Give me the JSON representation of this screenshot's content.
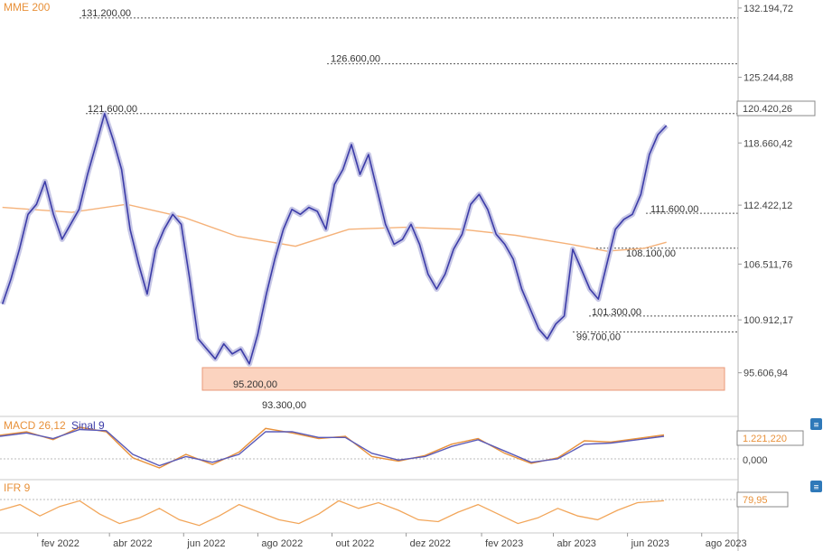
{
  "legend": {
    "mme": "MME 200",
    "macd": "MACD 26,12",
    "sinal": "Sinal 9",
    "ifr": "IFR 9"
  },
  "panel_buttons": [
    "≡",
    "≡"
  ],
  "price_levels": [
    {
      "label": "131.200,00",
      "value": 131200
    },
    {
      "label": "126.600,00",
      "value": 126600
    },
    {
      "label": "121.600,00",
      "value": 121600
    },
    {
      "label": "111.600,00",
      "value": 111600
    },
    {
      "label": "108.100,00",
      "value": 108100
    },
    {
      "label": "101.300,00",
      "value": 101300
    },
    {
      "label": "99.700,00",
      "value": 99700
    },
    {
      "label": "95.200,00",
      "value": 95200
    },
    {
      "label": "93.300,00",
      "value": 93300
    }
  ],
  "value_boxes": {
    "price_current": "120.420,26",
    "macd_current": "1.221,220",
    "ifr_current": "79,95"
  },
  "colors": {
    "price": "#3c3ca8",
    "price_shadow": "#c7c7e6",
    "mme": "#f5b27a",
    "macd": "#e8913a",
    "signal": "#5a5ab8",
    "ifr": "#f2a65a",
    "support_zone": "#fbd3bf",
    "support_zone_border": "#e99a78",
    "button": "#2f79b9"
  },
  "chart_data": {
    "type": "line",
    "price": {
      "y_tick_labels": [
        "132.194,72",
        "125.244,88",
        "118.660,42",
        "112.422,12",
        "106.511,76",
        "100.912,17",
        "95.606,94"
      ],
      "y_tick_values": [
        132194.72,
        125244.88,
        118660.42,
        112422.12,
        106511.76,
        100912.17,
        95606.94
      ],
      "ylim": [
        91500,
        133000
      ],
      "support_zone": [
        93300,
        95200
      ],
      "series": [
        {
          "name": "",
          "x": [
            "2022-01-03",
            "2022-01-10",
            "2022-01-17",
            "2022-01-24",
            "2022-01-31",
            "2022-02-07",
            "2022-02-14",
            "2022-02-21",
            "2022-03-07",
            "2022-03-14",
            "2022-03-21",
            "2022-03-28",
            "2022-04-04",
            "2022-04-11",
            "2022-04-18",
            "2022-04-25",
            "2022-05-02",
            "2022-05-09",
            "2022-05-16",
            "2022-05-23",
            "2022-05-30",
            "2022-06-06",
            "2022-06-13",
            "2022-06-20",
            "2022-06-27",
            "2022-07-04",
            "2022-07-11",
            "2022-07-18",
            "2022-07-25",
            "2022-08-01",
            "2022-08-08",
            "2022-08-15",
            "2022-08-22",
            "2022-08-29",
            "2022-09-05",
            "2022-09-12",
            "2022-09-19",
            "2022-09-26",
            "2022-10-03",
            "2022-10-10",
            "2022-10-17",
            "2022-10-24",
            "2022-10-31",
            "2022-11-07",
            "2022-11-14",
            "2022-11-21",
            "2022-11-28",
            "2022-12-05",
            "2022-12-12",
            "2022-12-19",
            "2022-12-26",
            "2023-01-02",
            "2023-01-09",
            "2023-01-16",
            "2023-01-23",
            "2023-01-30",
            "2023-02-06",
            "2023-02-13",
            "2023-02-20",
            "2023-02-27",
            "2023-03-06",
            "2023-03-13",
            "2023-03-20",
            "2023-03-27",
            "2023-04-03",
            "2023-04-10",
            "2023-04-17",
            "2023-04-24",
            "2023-05-01",
            "2023-05-08",
            "2023-05-15",
            "2023-05-22",
            "2023-05-29",
            "2023-06-05",
            "2023-06-12",
            "2023-06-19",
            "2023-06-26",
            "2023-07-03"
          ],
          "values": [
            102500,
            105000,
            108000,
            111500,
            112500,
            114800,
            111500,
            109000,
            112000,
            115500,
            118500,
            121600,
            119000,
            116000,
            110000,
            106500,
            103500,
            108000,
            110000,
            111500,
            110500,
            105000,
            99000,
            98000,
            97000,
            98500,
            97500,
            98000,
            96500,
            99500,
            103500,
            107000,
            110000,
            112000,
            111500,
            112200,
            111800,
            110000,
            114500,
            116000,
            118500,
            115500,
            117500,
            114000,
            110500,
            108500,
            109000,
            110500,
            108500,
            105500,
            104000,
            105500,
            108000,
            109500,
            112500,
            113500,
            112000,
            109500,
            108500,
            107000,
            104000,
            102000,
            100000,
            99000,
            100500,
            101300,
            108000,
            106000,
            104000,
            103000,
            106500,
            110000,
            111000,
            111500,
            113500,
            117500,
            119500,
            120400
          ]
        },
        {
          "name": "",
          "x": [
            "2022-01-03",
            "2022-03-01",
            "2022-04-15",
            "2022-06-01",
            "2022-07-15",
            "2022-09-01",
            "2022-10-15",
            "2022-12-01",
            "2023-01-15",
            "2023-03-01",
            "2023-04-15",
            "2023-05-15",
            "2023-06-15",
            "2023-07-03"
          ],
          "values": [
            112200,
            111700,
            112500,
            111200,
            109300,
            108300,
            110000,
            110200,
            110000,
            109400,
            108500,
            107800,
            108100,
            108700
          ]
        }
      ]
    },
    "macd": {
      "tick_labels": [
        "1.221,220",
        "0,000"
      ],
      "tick_values": [
        1221.22,
        0
      ],
      "ylim": [
        -2500,
        2700
      ],
      "series": [
        {
          "name": "MACD 26,12",
          "x": [
            0,
            4,
            8,
            12,
            16,
            20,
            24,
            28,
            32,
            36,
            40,
            44,
            48,
            52,
            56,
            60,
            64,
            68,
            72,
            76,
            80,
            84,
            88,
            92,
            96,
            100
          ],
          "values": [
            1200,
            1500,
            800,
            1900,
            1500,
            -800,
            -1700,
            -500,
            -1400,
            -300,
            1800,
            1400,
            900,
            1100,
            -700,
            -1100,
            -600,
            400,
            900,
            -400,
            -1300,
            -800,
            700,
            600,
            900,
            1221
          ]
        },
        {
          "name": "Sinal 9",
          "x": [
            0,
            4,
            8,
            12,
            16,
            20,
            24,
            28,
            32,
            36,
            40,
            44,
            48,
            52,
            56,
            60,
            64,
            68,
            72,
            76,
            80,
            84,
            88,
            92,
            96,
            100
          ],
          "values": [
            1100,
            1400,
            900,
            1700,
            1600,
            -500,
            -1500,
            -700,
            -1200,
            -500,
            1500,
            1500,
            1000,
            1000,
            -400,
            -1000,
            -700,
            200,
            800,
            -200,
            -1200,
            -900,
            400,
            500,
            800,
            1100
          ]
        }
      ]
    },
    "ifr": {
      "tick_labels": [
        "79,95"
      ],
      "tick_values": [
        79.95
      ],
      "ylim": [
        0,
        100
      ],
      "series": [
        {
          "name": "IFR 9",
          "x": [
            0,
            3,
            6,
            9,
            12,
            15,
            18,
            21,
            24,
            27,
            30,
            33,
            36,
            39,
            42,
            45,
            48,
            51,
            54,
            57,
            60,
            63,
            66,
            69,
            72,
            75,
            78,
            81,
            84,
            87,
            90,
            93,
            96,
            100
          ],
          "values": [
            55,
            70,
            40,
            65,
            80,
            45,
            20,
            35,
            60,
            30,
            15,
            40,
            70,
            50,
            30,
            20,
            45,
            80,
            60,
            75,
            55,
            30,
            25,
            50,
            70,
            45,
            20,
            35,
            60,
            40,
            30,
            55,
            75,
            79.95
          ]
        }
      ]
    },
    "x_tick_labels": [
      "fev 2022",
      "abr 2022",
      "jun 2022",
      "ago 2022",
      "out 2022",
      "dez 2022",
      "fev 2023",
      "abr 2023",
      "jun 2023",
      "ago 2023"
    ]
  }
}
